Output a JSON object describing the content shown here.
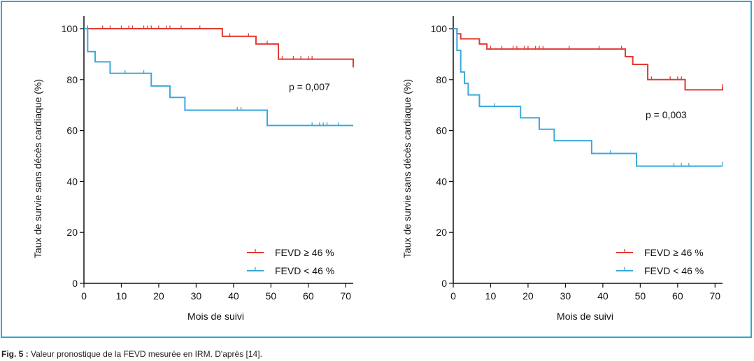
{
  "figure": {
    "caption_label": "Fig. 5 :",
    "caption_text": " Valeur pronostique de la FEVD mesurée en IRM. D'après [14]."
  },
  "colors": {
    "red": "#e23a33",
    "blue": "#3aa9dd",
    "frame": "#2aa7dc",
    "axis": "#111111"
  },
  "chart_data": [
    {
      "type": "line",
      "step": true,
      "xlabel": "Mois de suivi",
      "ylabel": "Taux de survie sans décès cardiaque (%)",
      "xlim": [
        0,
        72
      ],
      "ylim": [
        0,
        100
      ],
      "xticks": [
        0,
        10,
        20,
        30,
        40,
        50,
        60,
        70
      ],
      "yticks": [
        0,
        20,
        40,
        60,
        80,
        100
      ],
      "annotation": "p = 0,007",
      "legend_position": "bottom-right",
      "series": [
        {
          "name": "FEVD ≥ 46 %",
          "color": "#e23a33",
          "x": [
            0,
            37,
            46,
            52,
            72
          ],
          "y": [
            100,
            97,
            94,
            88,
            85
          ],
          "censored": [
            [
              1,
              100
            ],
            [
              5,
              100
            ],
            [
              7,
              100
            ],
            [
              10,
              100
            ],
            [
              12,
              100
            ],
            [
              13,
              100
            ],
            [
              16,
              100
            ],
            [
              17,
              100
            ],
            [
              18,
              100
            ],
            [
              20,
              100
            ],
            [
              22,
              100
            ],
            [
              23,
              100
            ],
            [
              26,
              100
            ],
            [
              31,
              100
            ],
            [
              39,
              97
            ],
            [
              44,
              97
            ],
            [
              49,
              94
            ],
            [
              53,
              88
            ],
            [
              56,
              88
            ],
            [
              58,
              88
            ],
            [
              60,
              88
            ],
            [
              61,
              88
            ],
            [
              72,
              85
            ]
          ]
        },
        {
          "name": "FEVD < 46 %",
          "color": "#3aa9dd",
          "x": [
            0,
            1,
            3,
            7,
            18,
            23,
            27,
            49,
            72
          ],
          "y": [
            100,
            91,
            87,
            82.5,
            77.5,
            73,
            68,
            62,
            62
          ],
          "censored": [
            [
              11,
              82.5
            ],
            [
              16,
              82.5
            ],
            [
              41,
              68
            ],
            [
              42,
              68
            ],
            [
              61,
              62
            ],
            [
              63,
              62
            ],
            [
              64,
              62
            ],
            [
              65,
              62
            ],
            [
              68,
              62
            ]
          ]
        }
      ]
    },
    {
      "type": "line",
      "step": true,
      "xlabel": "Mois de suivi",
      "ylabel": "Taux de survie sans décès cardiaque (%)",
      "xlim": [
        0,
        72
      ],
      "ylim": [
        0,
        100
      ],
      "xticks": [
        0,
        10,
        20,
        30,
        40,
        50,
        60,
        70
      ],
      "yticks": [
        0,
        20,
        40,
        60,
        80,
        100
      ],
      "annotation": "p = 0,003",
      "legend_position": "bottom-right",
      "series": [
        {
          "name": "FEVD ≥ 46 %",
          "color": "#e23a33",
          "x": [
            0,
            1,
            2,
            7,
            9,
            46,
            48,
            52,
            62,
            72
          ],
          "y": [
            100,
            98,
            96,
            94,
            92,
            89,
            86,
            80,
            76,
            77
          ],
          "censored": [
            [
              10,
              92
            ],
            [
              13,
              92
            ],
            [
              16,
              92
            ],
            [
              17,
              92
            ],
            [
              19,
              92
            ],
            [
              20,
              92
            ],
            [
              22,
              92
            ],
            [
              23,
              92
            ],
            [
              24,
              92
            ],
            [
              31,
              92
            ],
            [
              39,
              92
            ],
            [
              45,
              92
            ],
            [
              53,
              80
            ],
            [
              58,
              80
            ],
            [
              60,
              80
            ],
            [
              61,
              80
            ],
            [
              72,
              77
            ]
          ]
        },
        {
          "name": "FEVD < 46 %",
          "color": "#3aa9dd",
          "x": [
            0,
            1,
            2,
            3,
            4,
            7,
            18,
            23,
            27,
            37,
            49,
            72
          ],
          "y": [
            100,
            91.5,
            83,
            78.5,
            74,
            69.5,
            65,
            60.5,
            56,
            51,
            46,
            46
          ],
          "censored": [
            [
              11,
              69.5
            ],
            [
              42,
              51
            ],
            [
              59,
              46
            ],
            [
              61,
              46
            ],
            [
              63,
              46
            ],
            [
              72,
              46.5
            ]
          ]
        }
      ]
    }
  ]
}
